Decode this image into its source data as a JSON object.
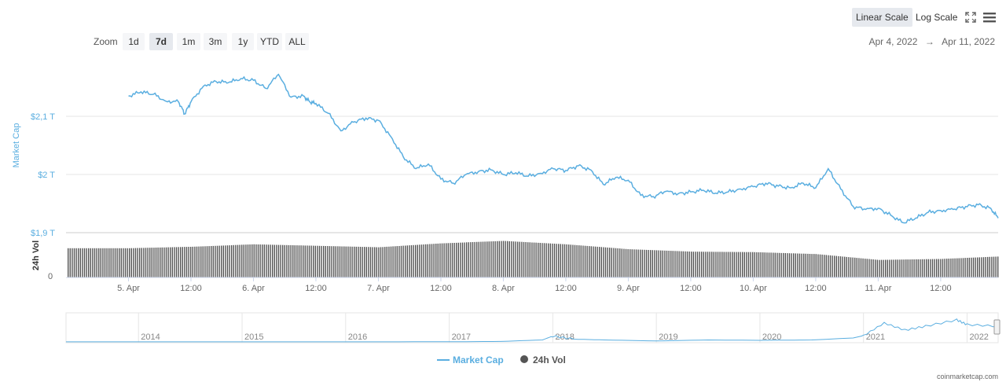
{
  "toolbar": {
    "linear_scale": "Linear Scale",
    "log_scale": "Log Scale",
    "fullscreen_icon": "fullscreen-icon",
    "menu_icon": "hamburger-menu-icon"
  },
  "zoom": {
    "label": "Zoom",
    "buttons": [
      "1d",
      "7d",
      "1m",
      "3m",
      "1y",
      "YTD",
      "ALL"
    ],
    "active": "7d"
  },
  "range": {
    "from": "Apr 4, 2022",
    "arrow": "→",
    "to": "Apr 11, 2022"
  },
  "colors": {
    "line": "#5aaee0",
    "axis_text": "#5aaee0",
    "bars": "#555555",
    "grid": "#e6e6e6"
  },
  "attribution": "coinmarketcap.com",
  "chart_data": [
    {
      "type": "line",
      "ylabel": "Market Cap",
      "yticks": [
        "$1,9 T",
        "$2 T",
        "$2,1 T"
      ],
      "ylim": [
        1.9,
        2.2
      ],
      "xlabels": [
        "5. Apr",
        "12:00",
        "6. Apr",
        "12:00",
        "7. Apr",
        "12:00",
        "8. Apr",
        "12:00",
        "9. Apr",
        "12:00",
        "10. Apr",
        "12:00",
        "11. Apr",
        "12:00"
      ],
      "series": [
        {
          "name": "Market Cap",
          "x": [
            0,
            0.1,
            0.2,
            0.3,
            0.4,
            0.45,
            0.5,
            0.6,
            0.7,
            0.8,
            0.9,
            1.0,
            1.1,
            1.2,
            1.3,
            1.4,
            1.45,
            1.5,
            1.6,
            1.7,
            1.8,
            1.9,
            2.0,
            2.1,
            2.2,
            2.3,
            2.4,
            2.5,
            2.6,
            2.7,
            2.8,
            2.9,
            3.0,
            3.1,
            3.2,
            3.3,
            3.4,
            3.5,
            3.6,
            3.7,
            3.8,
            3.9,
            4.0,
            4.1,
            4.2,
            4.3,
            4.4,
            4.5,
            4.6,
            4.7,
            4.8,
            4.9,
            5.0,
            5.1,
            5.2,
            5.3,
            5.4,
            5.5,
            5.6,
            5.7,
            5.8,
            5.9,
            6.0,
            6.1,
            6.2,
            6.3,
            6.4,
            6.5,
            6.6,
            6.7,
            6.8,
            6.9,
            6.96
          ],
          "values": [
            2.135,
            2.142,
            2.138,
            2.126,
            2.125,
            2.104,
            2.125,
            2.152,
            2.16,
            2.158,
            2.165,
            2.162,
            2.148,
            2.172,
            2.133,
            2.135,
            2.125,
            2.122,
            2.105,
            2.075,
            2.09,
            2.097,
            2.093,
            2.065,
            2.03,
            2.01,
            2.018,
            1.992,
            1.985,
            2.0,
            2.005,
            2.008,
            2.0,
            2.003,
            1.997,
            2.002,
            2.01,
            2.007,
            2.015,
            2.008,
            1.983,
            1.995,
            1.99,
            1.964,
            1.962,
            1.971,
            1.967,
            1.97,
            1.973,
            1.968,
            1.97,
            1.975,
            1.979,
            1.985,
            1.98,
            1.977,
            1.985,
            1.977,
            2.01,
            1.975,
            1.945,
            1.94,
            1.942,
            1.93,
            1.917,
            1.925,
            1.935,
            1.938,
            1.94,
            1.945,
            1.948,
            1.942,
            1.925
          ]
        }
      ]
    },
    {
      "type": "bar",
      "ylabel": "24h Vol",
      "yticks": [
        "0"
      ],
      "series": [
        {
          "name": "24h Vol",
          "x": [
            0,
            0.5,
            1.0,
            1.5,
            2.0,
            2.5,
            3.0,
            3.5,
            4.0,
            4.5,
            5.0,
            5.5,
            6.0,
            6.5,
            6.96
          ],
          "values": [
            0.6,
            0.63,
            0.68,
            0.65,
            0.62,
            0.7,
            0.75,
            0.68,
            0.58,
            0.53,
            0.52,
            0.48,
            0.36,
            0.38,
            0.43
          ]
        }
      ]
    },
    {
      "type": "area",
      "role": "navigator",
      "xlabels": [
        "2014",
        "2015",
        "2016",
        "2017",
        "2018",
        "2019",
        "2020",
        "2021",
        "2022"
      ],
      "series": [
        {
          "x": [
            2013.3,
            2014,
            2015,
            2016,
            2017,
            2017.5,
            2017.9,
            2018.0,
            2018.2,
            2018.5,
            2019.0,
            2019.5,
            2020.0,
            2020.5,
            2020.9,
            2021.0,
            2021.2,
            2021.4,
            2021.6,
            2021.9,
            2022.0,
            2022.3
          ],
          "values": [
            0.01,
            0.01,
            0.01,
            0.01,
            0.02,
            0.06,
            0.25,
            0.75,
            0.35,
            0.25,
            0.12,
            0.25,
            0.2,
            0.25,
            0.5,
            0.8,
            2.4,
            1.5,
            2.0,
            2.8,
            2.2,
            2.0
          ]
        }
      ]
    }
  ]
}
